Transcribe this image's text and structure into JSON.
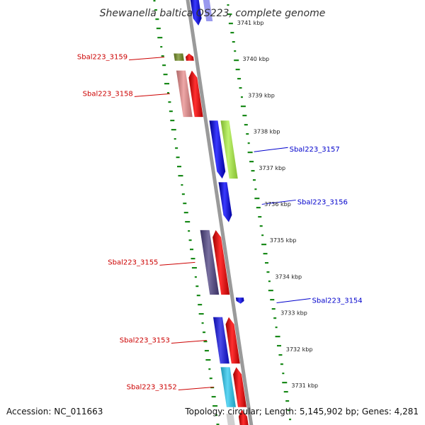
{
  "title": "Shewanella baltica OS223, complete genome",
  "accession_text": "Accession: NC_011663",
  "topology_text": "Topology: circular; Length: 5,145,902 bp; Genes: 4,281",
  "ticks": [
    {
      "label": "3741 kbp",
      "pos": 3741
    },
    {
      "label": "3740 kbp",
      "pos": 3740
    },
    {
      "label": "3739 kbp",
      "pos": 3739
    },
    {
      "label": "3738 kbp",
      "pos": 3738
    },
    {
      "label": "3737 kbp",
      "pos": 3737
    },
    {
      "label": "3736 kbp",
      "pos": 3736
    },
    {
      "label": "3735 kbp",
      "pos": 3735
    },
    {
      "label": "3734 kbp",
      "pos": 3734
    },
    {
      "label": "3733 kbp",
      "pos": 3733
    },
    {
      "label": "3732 kbp",
      "pos": 3732
    },
    {
      "label": "3731 kbp",
      "pos": 3731
    }
  ],
  "genes": [
    {
      "name": "Sbal223_3159",
      "label": "Sbal223_3159",
      "side": "left",
      "start": 3740.15,
      "end": 3739.95,
      "strand": "reverse",
      "cog_color": "#6f8a1f",
      "label_color": "#cc0000"
    },
    {
      "name": "Sbal223_3158",
      "label": "Sbal223_3158",
      "side": "left",
      "start": 3739.68,
      "end": 3738.4,
      "strand": "reverse",
      "cog_color": "#e88a8a",
      "label_color": "#cc0000"
    },
    {
      "name": "Sbal223_3157",
      "label": "Sbal223_3157",
      "side": "right",
      "start": 3738.3,
      "end": 3736.7,
      "strand": "forward",
      "cog_color": "#aaf040",
      "label_color": "#0000cc"
    },
    {
      "name": "Sbal223_3156",
      "label": "Sbal223_3156",
      "side": "right",
      "start": 3736.6,
      "end": 3735.5,
      "strand": "forward",
      "cog_color": null,
      "label_color": "#0000cc"
    },
    {
      "name": "Sbal223_3155",
      "label": "Sbal223_3155",
      "side": "left",
      "start": 3735.28,
      "end": 3733.5,
      "strand": "reverse",
      "cog_color": "#4b4080",
      "label_color": "#cc0000"
    },
    {
      "name": "Sbal223_3154",
      "label": "Sbal223_3154",
      "side": "right",
      "start": 3733.42,
      "end": 3733.25,
      "strand": "forward",
      "cog_color": null,
      "label_color": "#0000cc"
    },
    {
      "name": "Sbal223_3153",
      "label": "Sbal223_3153",
      "side": "left",
      "start": 3732.88,
      "end": 3731.6,
      "strand": "reverse",
      "cog_color": "#1010e0",
      "label_color": "#cc0000"
    },
    {
      "name": "Sbal223_3152",
      "label": "Sbal223_3152",
      "side": "left",
      "start": 3731.5,
      "end": 3730.4,
      "strand": "reverse",
      "cog_color": "#28c8f0",
      "label_color": "#cc0000"
    }
  ],
  "colors": {
    "forward_strand": "#1a1aee",
    "reverse_strand": "#ee1111",
    "backbone": "#9a9a9a",
    "dots": "#1a8a1a",
    "forward_label": "#0000cc",
    "reverse_label": "#cc0000"
  }
}
